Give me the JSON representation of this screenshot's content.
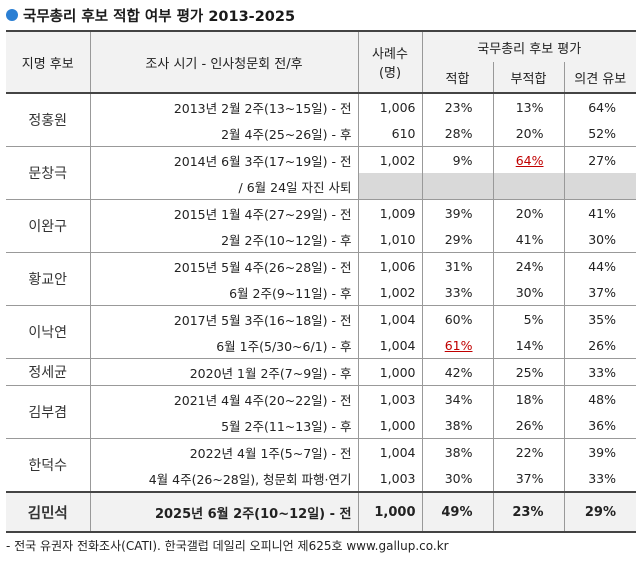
{
  "title": "국무총리 후보 적합 여부 평가 2013-2025",
  "headers": {
    "candidate": "지명 후보",
    "period": "조사 시기 - 인사청문회 전/후",
    "sample_line1": "사례수",
    "sample_line2": "(명)",
    "group": "국무총리 후보 평가",
    "suitable": "적합",
    "unsuitable": "부적합",
    "reserved": "의견 유보"
  },
  "rows": [
    {
      "name": "정홍원",
      "period": "2013년 2월 2주(13~15일) - 전",
      "n": "1,006",
      "suitable": "23%",
      "unsuitable": "13%",
      "reserved": "64%"
    },
    {
      "period": "2월 4주(25~26일) - 후",
      "n": "610",
      "suitable": "28%",
      "unsuitable": "20%",
      "reserved": "52%"
    },
    {
      "name": "문창극",
      "period": "2014년 6월 3주(17~19일) - 전",
      "n": "1,002",
      "suitable": "9%",
      "unsuitable": "64%",
      "reserved": "27%"
    },
    {
      "period": "/ 6월 24일 자진 사퇴"
    },
    {
      "name": "이완구",
      "period": "2015년 1월 4주(27~29일) - 전",
      "n": "1,009",
      "suitable": "39%",
      "unsuitable": "20%",
      "reserved": "41%"
    },
    {
      "period": "2월 2주(10~12일) - 후",
      "n": "1,010",
      "suitable": "29%",
      "unsuitable": "41%",
      "reserved": "30%"
    },
    {
      "name": "황교안",
      "period": "2015년 5월 4주(26~28일) - 전",
      "n": "1,006",
      "suitable": "31%",
      "unsuitable": "24%",
      "reserved": "44%"
    },
    {
      "period": "6월 2주(9~11일) - 후",
      "n": "1,002",
      "suitable": "33%",
      "unsuitable": "30%",
      "reserved": "37%"
    },
    {
      "name": "이낙연",
      "period": "2017년 5월 3주(16~18일) - 전",
      "n": "1,004",
      "suitable": "60%",
      "unsuitable": "5%",
      "reserved": "35%"
    },
    {
      "period": "6월 1주(5/30~6/1) - 후",
      "n": "1,004",
      "suitable": "61%",
      "unsuitable": "14%",
      "reserved": "26%"
    },
    {
      "name": "정세균",
      "period": "2020년 1월 2주(7~9일) - 후",
      "n": "1,000",
      "suitable": "42%",
      "unsuitable": "25%",
      "reserved": "33%"
    },
    {
      "name": "김부겸",
      "period": "2021년 4월 4주(20~22일) - 전",
      "n": "1,003",
      "suitable": "34%",
      "unsuitable": "18%",
      "reserved": "48%"
    },
    {
      "period": "5월 2주(11~13일) - 후",
      "n": "1,000",
      "suitable": "38%",
      "unsuitable": "26%",
      "reserved": "36%"
    },
    {
      "name": "한덕수",
      "period": "2022년 4월 1주(5~7일) - 전",
      "n": "1,004",
      "suitable": "38%",
      "unsuitable": "22%",
      "reserved": "39%"
    },
    {
      "period": "4월 4주(26~28일), 청문회 파행·연기",
      "n": "1,003",
      "suitable": "30%",
      "unsuitable": "37%",
      "reserved": "33%"
    }
  ],
  "final": {
    "name": "김민석",
    "period": "2025년 6월 2주(10~12일) - 전",
    "n": "1,000",
    "suitable": "49%",
    "unsuitable": "23%",
    "reserved": "29%"
  },
  "source": "- 전국 유권자 전화조사(CATI). 한국갤럽 데일리 오피니언 제625호 www.gallup.co.kr",
  "accent_color": "#2b7fd3",
  "highlight_color": "#c00000"
}
